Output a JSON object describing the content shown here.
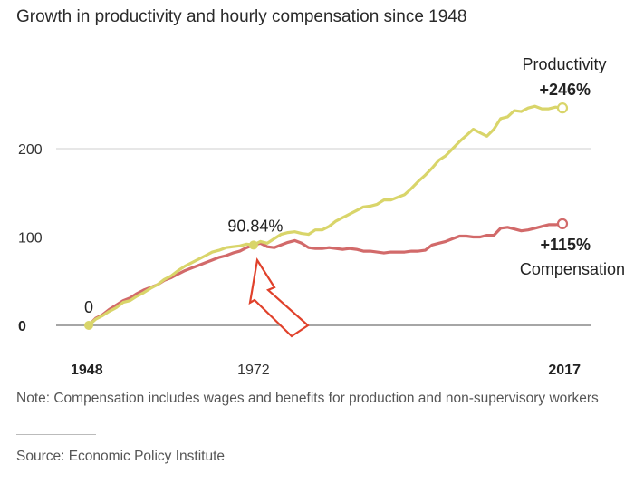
{
  "chart_data": {
    "type": "line",
    "title": "Growth in productivity and hourly compensation since 1948",
    "xlabel": "",
    "ylabel": "",
    "xlim": [
      1948,
      2017
    ],
    "ylim": [
      0,
      250
    ],
    "y_ticks": [
      {
        "value": 0,
        "label": "0",
        "bold": true
      },
      {
        "value": 100,
        "label": "100",
        "bold": false
      },
      {
        "value": 200,
        "label": "200",
        "bold": false
      }
    ],
    "x_ticks": [
      {
        "value": 1948,
        "label": "1948",
        "bold": true
      },
      {
        "value": 1972,
        "label": "1972",
        "bold": false
      },
      {
        "value": 2017,
        "label": "2017",
        "bold": true
      }
    ],
    "grid": true,
    "series": [
      {
        "name": "Productivity",
        "end_label": "+246%",
        "color": "#d9d56a",
        "x": [
          1948,
          1949,
          1950,
          1951,
          1952,
          1953,
          1954,
          1955,
          1956,
          1957,
          1958,
          1959,
          1960,
          1961,
          1962,
          1963,
          1964,
          1965,
          1966,
          1967,
          1968,
          1969,
          1970,
          1971,
          1972,
          1973,
          1974,
          1975,
          1976,
          1977,
          1978,
          1979,
          1980,
          1981,
          1982,
          1983,
          1984,
          1985,
          1986,
          1987,
          1988,
          1989,
          1990,
          1991,
          1992,
          1993,
          1994,
          1995,
          1996,
          1997,
          1998,
          1999,
          2000,
          2001,
          2002,
          2003,
          2004,
          2005,
          2006,
          2007,
          2008,
          2009,
          2010,
          2011,
          2012,
          2013,
          2014,
          2015,
          2016,
          2017
        ],
        "y": [
          0,
          7,
          11,
          16,
          20,
          26,
          28,
          33,
          37,
          42,
          46,
          52,
          56,
          62,
          67,
          71,
          75,
          79,
          83,
          85,
          88,
          89,
          90,
          92,
          91,
          95,
          93,
          98,
          103,
          105,
          106,
          104,
          103,
          108,
          108,
          112,
          118,
          122,
          126,
          130,
          134,
          135,
          137,
          142,
          142,
          145,
          148,
          155,
          163,
          170,
          178,
          187,
          192,
          200,
          208,
          215,
          222,
          218,
          214,
          222,
          234,
          236,
          243,
          242,
          246,
          248,
          245,
          245,
          247,
          246
        ]
      },
      {
        "name": "Compensation",
        "end_label": "+115%",
        "color": "#d26a6a",
        "x": [
          1948,
          1949,
          1950,
          1951,
          1952,
          1953,
          1954,
          1955,
          1956,
          1957,
          1958,
          1959,
          1960,
          1961,
          1962,
          1963,
          1964,
          1965,
          1966,
          1967,
          1968,
          1969,
          1970,
          1971,
          1972,
          1973,
          1974,
          1975,
          1976,
          1977,
          1978,
          1979,
          1980,
          1981,
          1982,
          1983,
          1984,
          1985,
          1986,
          1987,
          1988,
          1989,
          1990,
          1991,
          1992,
          1993,
          1994,
          1995,
          1996,
          1997,
          1998,
          1999,
          2000,
          2001,
          2002,
          2003,
          2004,
          2005,
          2006,
          2007,
          2008,
          2009,
          2010,
          2011,
          2012,
          2013,
          2014,
          2015,
          2016,
          2017
        ],
        "y": [
          0,
          8,
          12,
          18,
          23,
          28,
          31,
          36,
          40,
          43,
          46,
          51,
          54,
          58,
          62,
          65,
          68,
          71,
          74,
          77,
          79,
          82,
          84,
          88,
          91,
          93,
          89,
          88,
          91,
          94,
          96,
          93,
          88,
          87,
          87,
          88,
          87,
          86,
          87,
          86,
          84,
          84,
          83,
          82,
          83,
          83,
          83,
          84,
          84,
          85,
          91,
          93,
          95,
          98,
          101,
          101,
          100,
          100,
          102,
          102,
          110,
          111,
          109,
          107,
          108,
          110,
          112,
          114,
          114,
          115
        ]
      }
    ],
    "annotations": [
      {
        "x": 1948,
        "y": 0,
        "text": "0"
      },
      {
        "x": 1972,
        "y": 90.84,
        "text": "90.84%"
      }
    ]
  },
  "footer": {
    "note": "Note: Compensation includes wages and benefits for production and non-supervisory workers",
    "source": "Source: Economic Policy Institute"
  }
}
